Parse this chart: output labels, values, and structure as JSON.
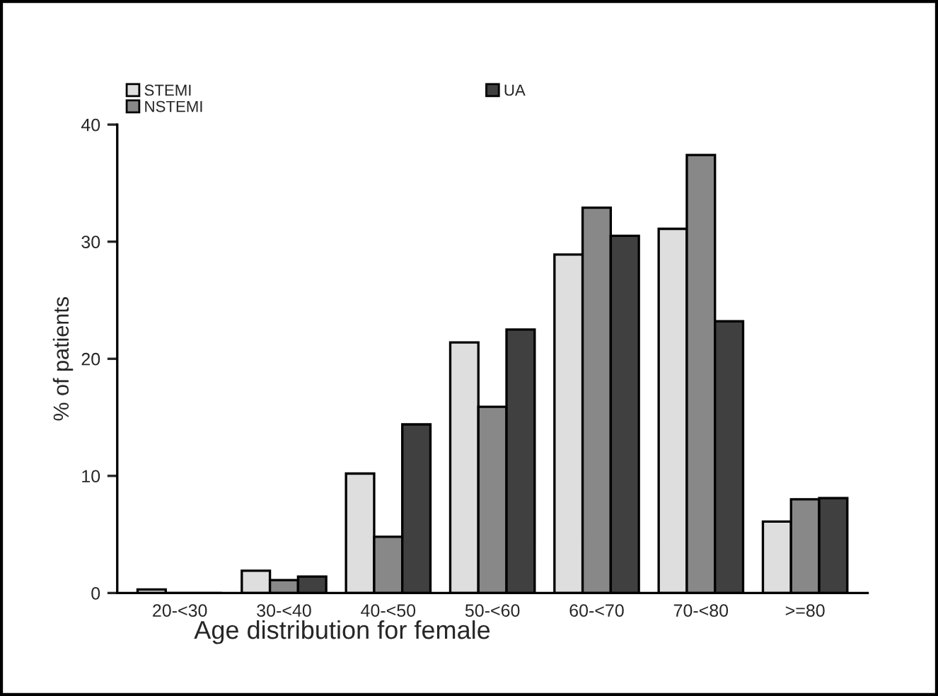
{
  "chart_data": {
    "type": "bar",
    "xlabel": "Age distribution for female",
    "ylabel": "% of patients",
    "categories": [
      "20-<30",
      "30-<40",
      "40-<50",
      "50-<60",
      "60-<70",
      "70-<80",
      ">=80"
    ],
    "series": [
      {
        "name": "STEMI",
        "color": "#dedede",
        "values": [
          0.3,
          1.9,
          10.2,
          21.4,
          28.9,
          31.1,
          6.1
        ]
      },
      {
        "name": "NSTEMI",
        "color": "#888888",
        "values": [
          0,
          1.1,
          4.8,
          15.9,
          32.9,
          37.4,
          8.0
        ]
      },
      {
        "name": "UA",
        "color": "#404040",
        "values": [
          0,
          1.4,
          14.4,
          22.5,
          30.5,
          23.2,
          8.1
        ]
      }
    ],
    "ylim": [
      0,
      40
    ],
    "yticks": [
      0,
      10,
      20,
      30,
      40
    ],
    "grid": false,
    "legend": "top left"
  }
}
